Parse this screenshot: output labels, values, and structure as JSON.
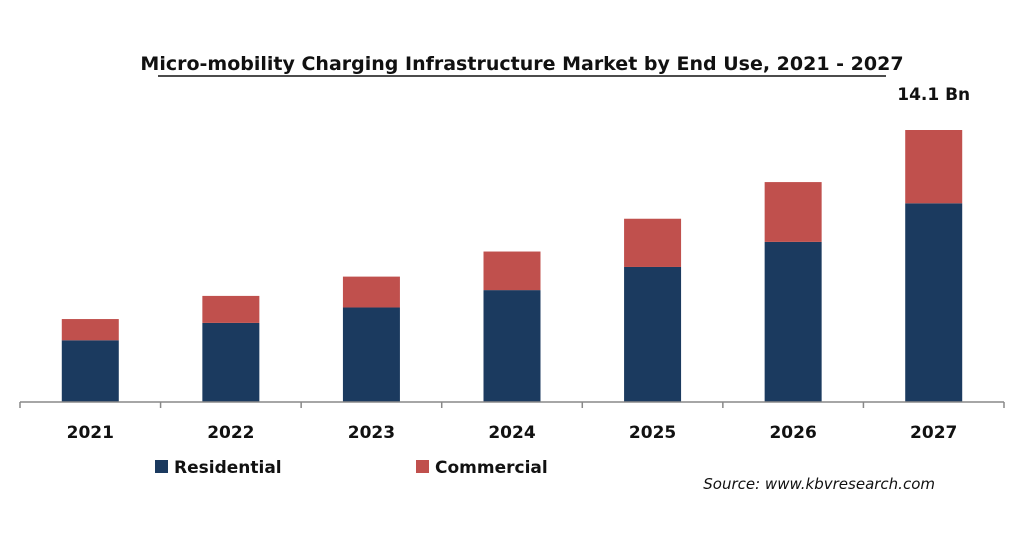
{
  "chart_data": {
    "type": "bar",
    "stacked": true,
    "title": "Micro-mobility Charging Infrastructure Market by End Use, 2021 - 2027",
    "xlabel": "",
    "ylabel": "",
    "categories": [
      "2021",
      "2022",
      "2023",
      "2024",
      "2025",
      "2026",
      "2027"
    ],
    "series": [
      {
        "name": "Residential",
        "color": "#1b3a5f",
        "values": [
          3.2,
          4.1,
          4.9,
          5.8,
          7.0,
          8.3,
          10.3
        ]
      },
      {
        "name": "Commercial",
        "color": "#c0504d",
        "values": [
          1.1,
          1.4,
          1.6,
          2.0,
          2.5,
          3.1,
          3.8
        ]
      }
    ],
    "ylim": [
      0,
      14.1
    ],
    "grid": false,
    "legend": "bottom-left",
    "annotations": [
      {
        "category": "2027",
        "text": "14.1 Bn"
      }
    ],
    "source": "Source: www.kbvresearch.com"
  }
}
